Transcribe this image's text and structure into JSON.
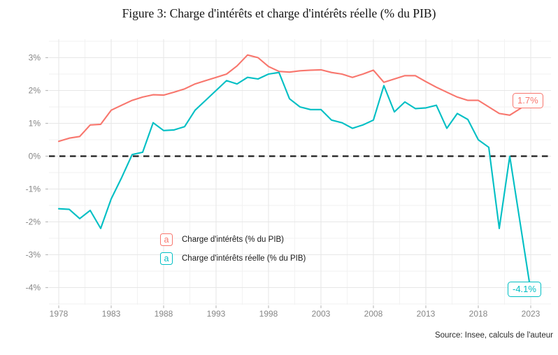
{
  "title": "Figure 3: Charge d'intérêts et charge d'intérêts réelle (% du PIB)",
  "source": "Source: Insee, calculs de l'auteur",
  "colors": {
    "series_red": "#F8766D",
    "series_teal": "#00BFC4",
    "zero_line": "#1c1c1c",
    "grid_major": "#e7e7e7",
    "grid_minor": "#f2f2f2",
    "axis_text": "#868686",
    "tick_mark": "#bdbdbd"
  },
  "legend": {
    "key_glyph": "a"
  },
  "chart_data": {
    "type": "line",
    "title": "Figure 3: Charge d'intérêts et charge d'intérêts réelle (% du PIB)",
    "xlabel": "",
    "ylabel": "",
    "grid": "on",
    "legend_position": "inside-bottom-left",
    "x": [
      1978,
      1979,
      1980,
      1981,
      1982,
      1983,
      1984,
      1985,
      1986,
      1987,
      1988,
      1989,
      1990,
      1991,
      1992,
      1993,
      1994,
      1995,
      1996,
      1997,
      1998,
      1999,
      2000,
      2001,
      2002,
      2003,
      2004,
      2005,
      2006,
      2007,
      2008,
      2009,
      2010,
      2011,
      2012,
      2013,
      2014,
      2015,
      2016,
      2017,
      2018,
      2019,
      2020,
      2021,
      2022,
      2023
    ],
    "x_ticks": [
      1978,
      1983,
      1988,
      1993,
      1998,
      2003,
      2008,
      2013,
      2018,
      2023
    ],
    "y_ticks": [
      3,
      2,
      1,
      0,
      -1,
      -2,
      -3,
      -4
    ],
    "y_tick_labels": [
      "3%",
      "2%",
      "1%",
      "0%",
      "-1%",
      "-2%",
      "-3%",
      "-4%"
    ],
    "ylim": [
      -4.5,
      3.55
    ],
    "zero_line": {
      "y": 0,
      "style": "dashed",
      "color": "#1c1c1c"
    },
    "series": [
      {
        "name": "Charge d'intérêts (% du PIB)",
        "color": "#F8766D",
        "end_label": "1.7%",
        "values": [
          0.45,
          0.55,
          0.6,
          0.95,
          0.97,
          1.4,
          1.55,
          1.7,
          1.8,
          1.87,
          1.86,
          1.95,
          2.05,
          2.2,
          2.3,
          2.4,
          2.5,
          2.75,
          3.08,
          3.0,
          2.73,
          2.58,
          2.56,
          2.6,
          2.62,
          2.63,
          2.55,
          2.5,
          2.4,
          2.5,
          2.62,
          2.25,
          2.35,
          2.45,
          2.45,
          2.27,
          2.1,
          1.95,
          1.8,
          1.7,
          1.7,
          1.5,
          1.3,
          1.25,
          1.45,
          1.7
        ]
      },
      {
        "name": "Charge d'intérêts réelle (% du PIB)",
        "color": "#00BFC4",
        "end_label": "-4.1%",
        "values": [
          -1.6,
          -1.62,
          -1.9,
          -1.65,
          -2.2,
          -1.3,
          -0.65,
          0.05,
          0.12,
          1.02,
          0.78,
          0.8,
          0.9,
          1.4,
          1.7,
          2.0,
          2.3,
          2.2,
          2.4,
          2.35,
          2.5,
          2.55,
          1.75,
          1.5,
          1.42,
          1.42,
          1.1,
          1.02,
          0.85,
          0.95,
          1.1,
          2.15,
          1.35,
          1.65,
          1.45,
          1.47,
          1.55,
          0.85,
          1.3,
          1.12,
          0.5,
          0.27,
          -2.2,
          0.0,
          -2.05,
          -4.1
        ]
      }
    ]
  }
}
